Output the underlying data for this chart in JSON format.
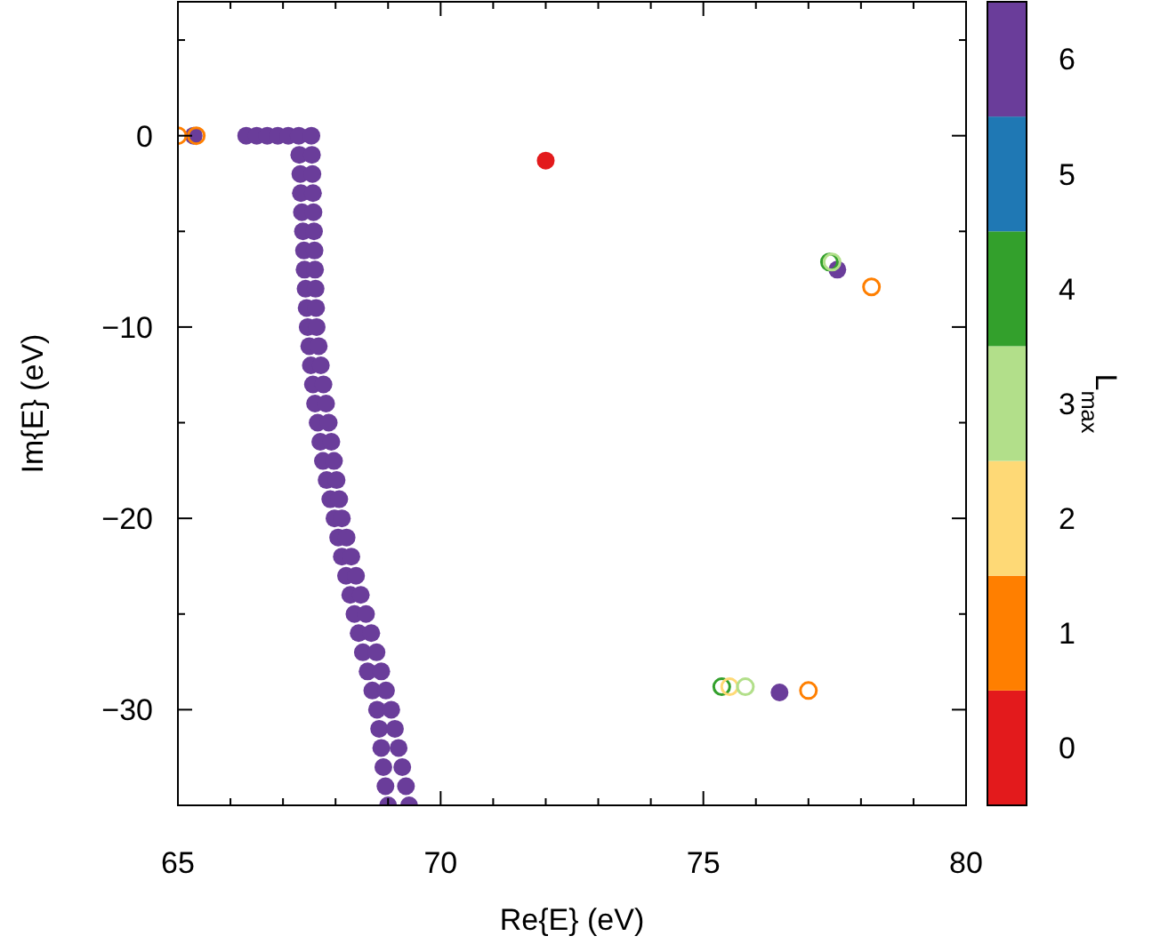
{
  "chart_data": {
    "type": "scatter",
    "xlabel": "Re{E} (eV)",
    "ylabel": "Im{E} (eV)",
    "clabel": "L$_{max}$",
    "xlim": [
      65,
      80
    ],
    "xticks": [
      65,
      {
        "value": 66,
        "label": null
      },
      {
        "value": 67,
        "label": null
      },
      {
        "value": 68,
        "label": null
      },
      {
        "value": 69,
        "label": null
      },
      70,
      {
        "value": 71,
        "label": null
      },
      {
        "value": 72,
        "label": null
      },
      {
        "value": 73,
        "label": null
      },
      {
        "value": 74,
        "label": null
      },
      75,
      {
        "value": 76,
        "label": null
      },
      {
        "value": 77,
        "label": null
      },
      {
        "value": 78,
        "label": null
      },
      {
        "value": 79,
        "label": null
      },
      80
    ],
    "ylim": [
      -35,
      7
    ],
    "yticks": [
      {
        "value": -35,
        "label": null
      },
      -30,
      {
        "value": -25,
        "label": null
      },
      -20,
      {
        "value": -15,
        "label": null
      },
      -10,
      {
        "value": -5,
        "label": null
      },
      0,
      {
        "value": 5,
        "label": null
      }
    ],
    "clim": [
      -0.5,
      6.5
    ],
    "cticks": [
      0,
      1,
      2,
      3,
      4,
      5,
      6
    ],
    "colors": [
      "#e31a1c",
      "#ff7f00",
      "#fed976",
      "#b2df8a",
      "#33a02c",
      "#1f78b4",
      "#6a3d9a"
    ],
    "series": [
      {
        "marker": "circle",
        "x": [
          66.3,
          66.5,
          66.7,
          66.9,
          67.1,
          67.3,
          67.31,
          67.33,
          67.34,
          67.36,
          67.38,
          67.4,
          67.41,
          67.43,
          67.45,
          67.47,
          67.5,
          67.53,
          67.57,
          67.61,
          67.66,
          67.71,
          67.76,
          67.83,
          67.9,
          67.98,
          68.05,
          68.12,
          68.2,
          68.28,
          68.36,
          68.44,
          68.52,
          68.61,
          68.7,
          68.79,
          68.83,
          68.87,
          68.91,
          68.95,
          69.0,
          67.54,
          67.55,
          67.56,
          67.57,
          67.58,
          67.59,
          67.6,
          67.61,
          67.62,
          67.63,
          67.64,
          67.68,
          67.72,
          67.77,
          67.82,
          67.87,
          67.92,
          67.97,
          68.02,
          68.07,
          68.12,
          68.21,
          68.3,
          68.39,
          68.48,
          68.58,
          68.68,
          68.78,
          68.87,
          68.96,
          69.06,
          69.13,
          69.2,
          69.27,
          69.34,
          69.4,
          65.3,
          77.55,
          76.45,
          72.0
        ],
        "values": [
          0,
          0,
          0,
          0,
          0,
          0,
          -1,
          -2,
          -3,
          -4,
          -5,
          -6,
          -7,
          -8,
          -9,
          -10,
          -11,
          -12,
          -13,
          -14,
          -15,
          -16,
          -17,
          -18,
          -19,
          -20,
          -21,
          -22,
          -23,
          -24,
          -25,
          -26,
          -27,
          -28,
          -29,
          -30,
          -31,
          -32,
          -33,
          -34,
          -35,
          0,
          -1,
          -2,
          -3,
          -4,
          -5,
          -6,
          -7,
          -8,
          -9,
          -10,
          -11,
          -12,
          -13,
          -14,
          -15,
          -16,
          -17,
          -18,
          -19,
          -20,
          -21,
          -22,
          -23,
          -24,
          -25,
          -26,
          -27,
          -28,
          -29,
          -30,
          -31,
          -32,
          -33,
          -34,
          -35,
          0,
          -7.0,
          -29.1,
          -1.3
        ],
        "colors": [
          "#6a3d9a",
          "#6a3d9a",
          "#6a3d9a",
          "#6a3d9a",
          "#6a3d9a",
          "#6a3d9a",
          "#6a3d9a",
          "#6a3d9a",
          "#6a3d9a",
          "#6a3d9a",
          "#6a3d9a",
          "#6a3d9a",
          "#6a3d9a",
          "#6a3d9a",
          "#6a3d9a",
          "#6a3d9a",
          "#6a3d9a",
          "#6a3d9a",
          "#6a3d9a",
          "#6a3d9a",
          "#6a3d9a",
          "#6a3d9a",
          "#6a3d9a",
          "#6a3d9a",
          "#6a3d9a",
          "#6a3d9a",
          "#6a3d9a",
          "#6a3d9a",
          "#6a3d9a",
          "#6a3d9a",
          "#6a3d9a",
          "#6a3d9a",
          "#6a3d9a",
          "#6a3d9a",
          "#6a3d9a",
          "#6a3d9a",
          "#6a3d9a",
          "#6a3d9a",
          "#6a3d9a",
          "#6a3d9a",
          "#6a3d9a",
          "#6a3d9a",
          "#6a3d9a",
          "#6a3d9a",
          "#6a3d9a",
          "#6a3d9a",
          "#6a3d9a",
          "#6a3d9a",
          "#6a3d9a",
          "#6a3d9a",
          "#6a3d9a",
          "#6a3d9a",
          "#6a3d9a",
          "#6a3d9a",
          "#6a3d9a",
          "#6a3d9a",
          "#6a3d9a",
          "#6a3d9a",
          "#6a3d9a",
          "#6a3d9a",
          "#6a3d9a",
          "#6a3d9a",
          "#6a3d9a",
          "#6a3d9a",
          "#6a3d9a",
          "#6a3d9a",
          "#6a3d9a",
          "#6a3d9a",
          "#6a3d9a",
          "#6a3d9a",
          "#6a3d9a",
          "#6a3d9a",
          "#6a3d9a",
          "#6a3d9a",
          "#6a3d9a",
          "#6a3d9a",
          "#6a3d9a",
          "#6a3d9a",
          "#6a3d9a",
          "#6a3d9a",
          "#e31a1c"
        ]
      },
      {
        "marker": "circle-open",
        "x": [
          65.0,
          65.35,
          77.4,
          77.45,
          78.2,
          75.35,
          75.5,
          75.8,
          77.0
        ],
        "values": [
          0,
          0,
          -6.6,
          -6.6,
          -7.9,
          -28.8,
          -28.8,
          -28.8,
          -29.0
        ],
        "colors": [
          "#ff7f00",
          "#ff7f00",
          "#33a02c",
          "#b2df8a",
          "#ff7f00",
          "#33a02c",
          "#fed976",
          "#b2df8a",
          "#ff7f00"
        ]
      }
    ]
  }
}
